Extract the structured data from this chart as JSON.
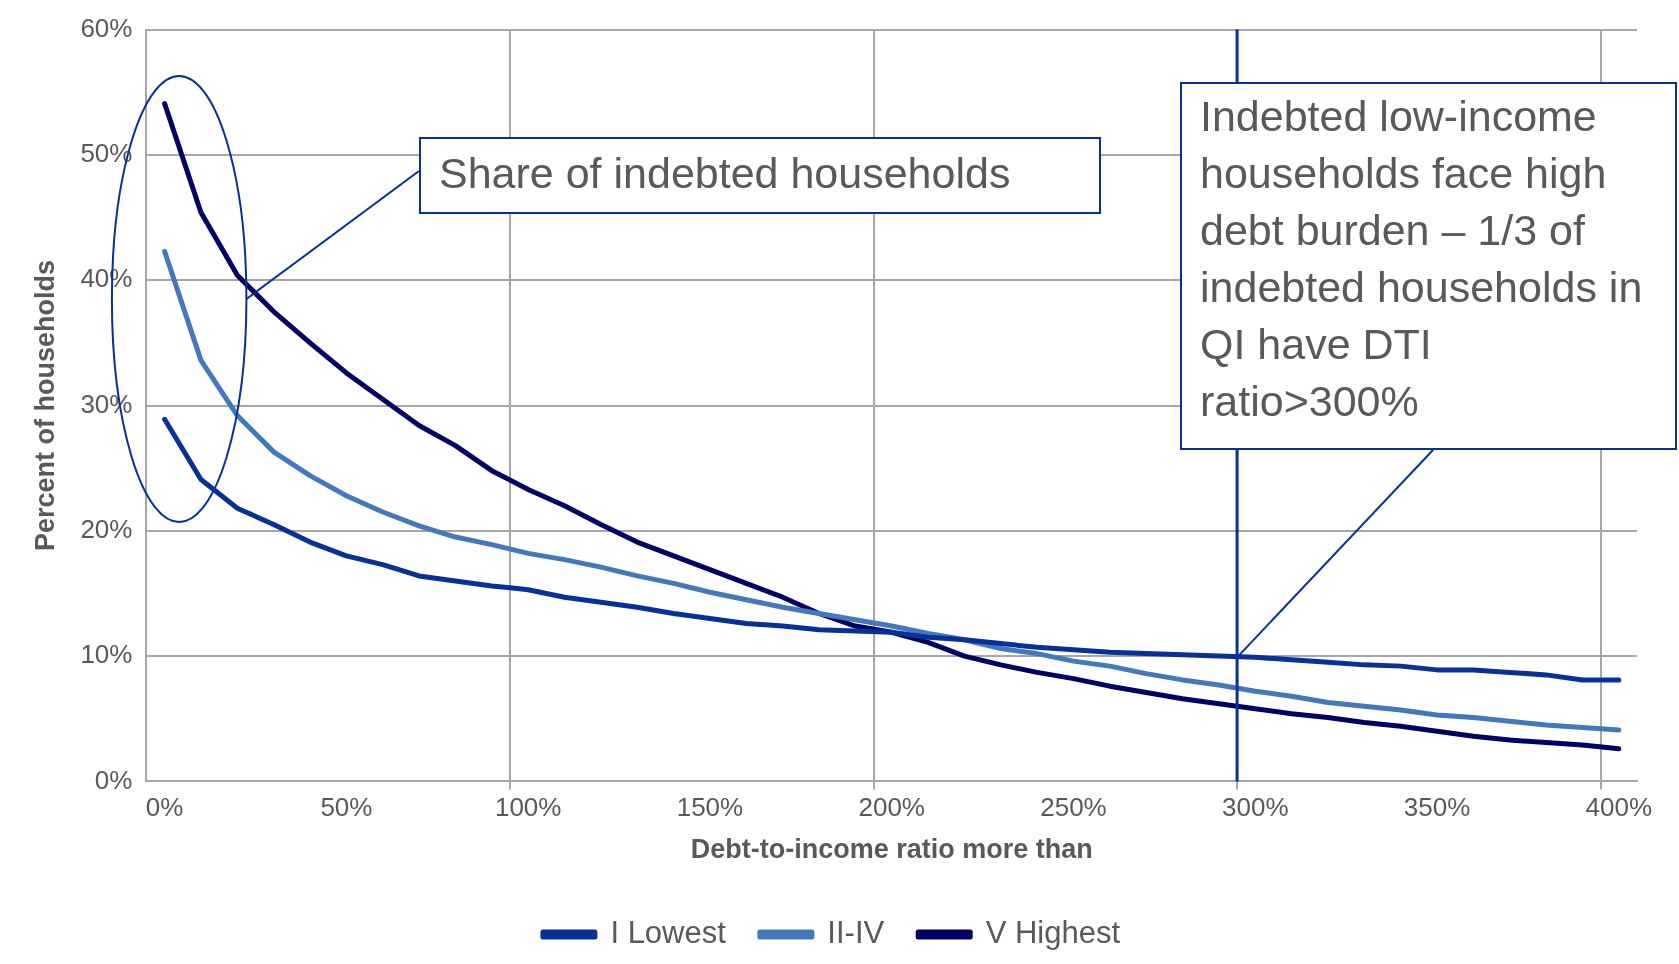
{
  "chart_data": {
    "type": "line",
    "xlabel": "Debt-to-income ratio more than",
    "ylabel": "Percent of households",
    "x": [
      0,
      10,
      20,
      30,
      40,
      50,
      60,
      70,
      80,
      90,
      100,
      110,
      120,
      130,
      140,
      150,
      160,
      170,
      180,
      190,
      200,
      210,
      220,
      230,
      240,
      250,
      260,
      270,
      280,
      290,
      300,
      310,
      320,
      330,
      340,
      350,
      360,
      370,
      380,
      390,
      400
    ],
    "series": [
      {
        "name": "I Lowest",
        "color": "#06309a",
        "values": [
          28.9,
          24.1,
          21.8,
          20.5,
          19.1,
          18.0,
          17.3,
          16.4,
          16.0,
          15.6,
          15.3,
          14.7,
          14.3,
          13.9,
          13.4,
          13.0,
          12.6,
          12.4,
          12.1,
          12.0,
          11.9,
          11.5,
          11.3,
          11.0,
          10.7,
          10.5,
          10.3,
          10.2,
          10.1,
          10.0,
          9.9,
          9.7,
          9.5,
          9.3,
          9.2,
          8.9,
          8.9,
          8.7,
          8.5,
          8.1,
          8.1
        ]
      },
      {
        "name": "II-IV",
        "color": "#4178be",
        "values": [
          42.3,
          33.6,
          29.2,
          26.3,
          24.4,
          22.8,
          21.5,
          20.4,
          19.5,
          18.9,
          18.2,
          17.7,
          17.1,
          16.4,
          15.8,
          15.1,
          14.5,
          13.9,
          13.4,
          12.9,
          12.4,
          11.8,
          11.3,
          10.6,
          10.2,
          9.6,
          9.2,
          8.6,
          8.1,
          7.7,
          7.2,
          6.8,
          6.3,
          6.0,
          5.7,
          5.3,
          5.1,
          4.8,
          4.5,
          4.3,
          4.1
        ]
      },
      {
        "name": "V Highest",
        "color": "#000066",
        "values": [
          54.1,
          45.4,
          40.4,
          37.5,
          35.0,
          32.6,
          30.5,
          28.4,
          26.8,
          24.8,
          23.3,
          22.0,
          20.5,
          19.1,
          18.0,
          16.9,
          15.8,
          14.7,
          13.4,
          12.4,
          11.9,
          11.1,
          10.0,
          9.3,
          8.7,
          8.2,
          7.6,
          7.1,
          6.6,
          6.2,
          5.8,
          5.4,
          5.1,
          4.7,
          4.4,
          4.0,
          3.6,
          3.3,
          3.1,
          2.9,
          2.6
        ]
      }
    ],
    "xlim": [
      -5,
      405
    ],
    "xticks": [
      {
        "value": 0,
        "label": "0%"
      },
      {
        "value": 50,
        "label": "50%"
      },
      {
        "value": 95,
        "label": null
      },
      {
        "value": 100,
        "label": "100%"
      },
      {
        "value": 150,
        "label": "150%"
      },
      {
        "value": 195,
        "label": null
      },
      {
        "value": 200,
        "label": "200%"
      },
      {
        "value": 250,
        "label": "250%"
      },
      {
        "value": 295,
        "label": null
      },
      {
        "value": 300,
        "label": "300%"
      },
      {
        "value": 350,
        "label": "350%"
      },
      {
        "value": 395,
        "label": null
      },
      {
        "value": 400,
        "label": "400%"
      }
    ],
    "ylim": [
      0,
      60
    ],
    "yticks": [
      {
        "value": 0,
        "label": "0%"
      },
      {
        "value": 10,
        "label": "10%"
      },
      {
        "value": 20,
        "label": "20%"
      },
      {
        "value": 30,
        "label": "30%"
      },
      {
        "value": 40,
        "label": "40%"
      },
      {
        "value": 50,
        "label": "50%"
      },
      {
        "value": 60,
        "label": "60%"
      }
    ],
    "ref_lines": [
      {
        "axis": "x",
        "value": 295,
        "color": "#06309a"
      }
    ],
    "annotations": [
      "Share of indebted households",
      {
        "text": "Indebted low-income households face high debt burden – 1/3 of indebted households in QI have DTI ratio>300%",
        "x": 295,
        "y": 9.9
      }
    ],
    "grid": true,
    "legend": "bottom",
    "marker": "none"
  }
}
